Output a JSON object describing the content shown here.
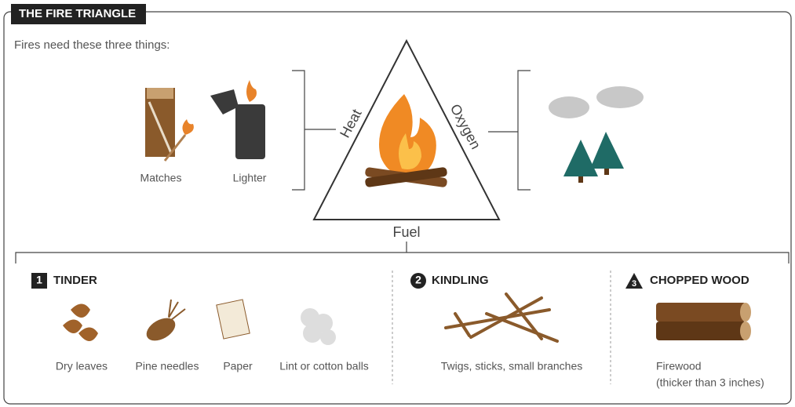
{
  "header": {
    "title": "THE FIRE TRIANGLE",
    "subtitle": "Fires need these three things:"
  },
  "heat_sources": [
    "Matches",
    "Lighter"
  ],
  "triangle": {
    "left": "Heat",
    "right": "Oxygen",
    "bottom": "Fuel"
  },
  "fuel_types": [
    {
      "number": "1",
      "title": "TINDER",
      "items": [
        "Dry leaves",
        "Pine needles",
        "Paper",
        "Lint or cotton balls"
      ]
    },
    {
      "number": "2",
      "title": "KINDLING",
      "items": [
        "Twigs, sticks, small branches"
      ]
    },
    {
      "number": "3",
      "title": "CHOPPED WOOD",
      "items": [
        "Firewood",
        "(thicker than 3 inches)"
      ]
    }
  ]
}
